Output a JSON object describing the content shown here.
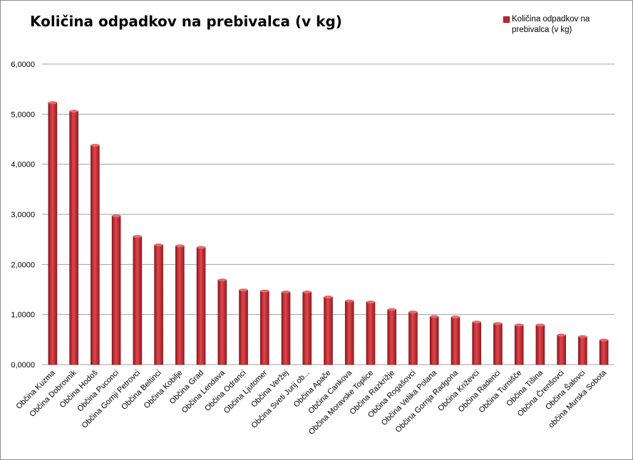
{
  "chart_data": {
    "type": "bar",
    "title": "Količina odpadkov na prebivalca (v kg)",
    "legend": {
      "position": "top-right",
      "label": "Količina odpadkov na prebivalca (v kg)"
    },
    "grid": true,
    "ylim": [
      0,
      6
    ],
    "yticks": [
      "0,0000",
      "1,0000",
      "2,0000",
      "3,0000",
      "4,0000",
      "5,0000",
      "6,0000"
    ],
    "colors": {
      "bar": "#c0272d",
      "bar_dark": "#7e1418",
      "bar_light": "#e86a6e",
      "grid": "#a0a0a0"
    },
    "categories": [
      "Občina Kuzma",
      "Občina Dobrovnik",
      "Občina Hodoš",
      "Občina Puconci",
      "Občina Gornji Petrovci",
      "Občina Beltinci",
      "Občina Kobilje",
      "Občina Grad",
      "Občina Lendava",
      "Občina Odranci",
      "Občina Ljutomer",
      "Občina Veržej",
      "Občina Sveti Jurij ob...",
      "Občina Apače",
      "Občina Cankova",
      "Občina Moravske Toplice",
      "Občina Razkrižje",
      "Občina Rogašovci",
      "Občina Velika Polana",
      "Občina Gornja Radgona",
      "Občina Križevci",
      "Občina Radenci",
      "Občina Turnišče",
      "Občina Tišina",
      "Občina Črenšovci",
      "Občina Šalovci",
      "občina Murska Sobota"
    ],
    "values": [
      5.23,
      5.06,
      4.38,
      2.97,
      2.56,
      2.39,
      2.37,
      2.34,
      1.69,
      1.49,
      1.47,
      1.45,
      1.45,
      1.35,
      1.27,
      1.25,
      1.1,
      1.05,
      0.96,
      0.95,
      0.85,
      0.82,
      0.79,
      0.79,
      0.59,
      0.56,
      0.49
    ]
  }
}
